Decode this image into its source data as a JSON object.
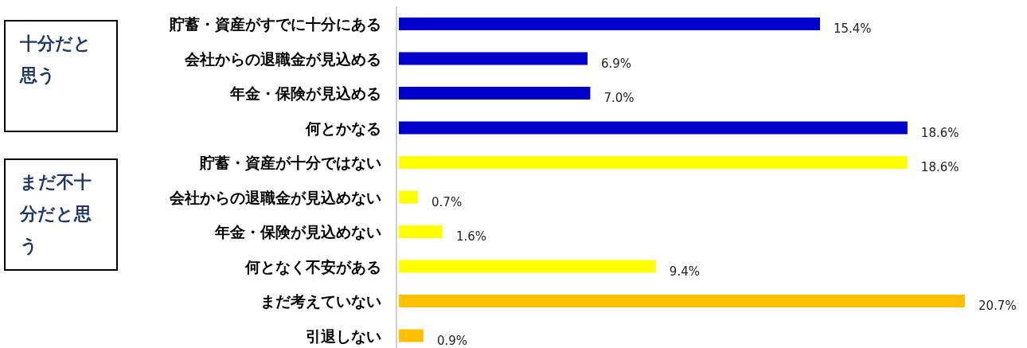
{
  "chart_data": {
    "type": "bar",
    "orientation": "horizontal",
    "categories": [
      "貯蓄・資産がすでに十分にある",
      "会社からの退職金が見込める",
      "年金・保険が見込める",
      "何とかなる",
      "貯蓄・資産が十分ではない",
      "会社からの退職金が見込めない",
      "年金・保険が見込めない",
      "何となく不安がある",
      "まだ考えていない",
      "引退しない"
    ],
    "values": [
      15.4,
      6.9,
      7.0,
      18.6,
      18.6,
      0.7,
      1.6,
      9.4,
      20.7,
      0.9
    ],
    "value_labels": [
      "15.4%",
      "6.9%",
      "7.0%",
      "18.6%",
      "18.6%",
      "0.7%",
      "1.6%",
      "9.4%",
      "20.7%",
      "0.9%"
    ],
    "colors": [
      "#0000cc",
      "#0000cc",
      "#0000cc",
      "#0000cc",
      "#ffff00",
      "#ffff00",
      "#ffff00",
      "#ffff00",
      "#ffc000",
      "#ffc000"
    ],
    "annotations": [
      "十分だと思う",
      "まだ不十分だと思う"
    ]
  }
}
